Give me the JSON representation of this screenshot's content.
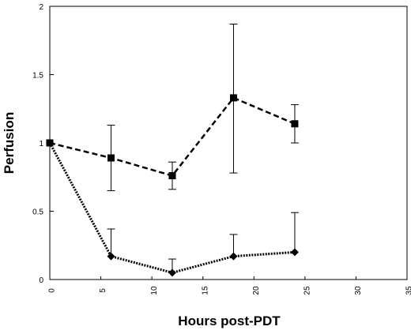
{
  "chart_data": {
    "type": "line",
    "title": "",
    "xlabel": "Hours post-PDT",
    "ylabel": "Perfusion",
    "xlim": [
      0,
      35
    ],
    "ylim": [
      0,
      2
    ],
    "xticks": [
      "0",
      "5",
      "10",
      "15",
      "20",
      "25",
      "30",
      "35"
    ],
    "yticks": [
      "0",
      "0.5",
      "1",
      "1.5",
      "2"
    ],
    "grid": false,
    "legend": "none",
    "series": [
      {
        "marker": "square",
        "line_style": "dashed",
        "color": "#000000",
        "points": [
          {
            "x": 0,
            "y": 1.0,
            "err": null
          },
          {
            "x": 6,
            "y": 0.89,
            "err": [
              0.65,
              1.13
            ]
          },
          {
            "x": 12,
            "y": 0.76,
            "err": [
              0.66,
              0.86
            ]
          },
          {
            "x": 18,
            "y": 1.33,
            "err": [
              0.78,
              1.87
            ]
          },
          {
            "x": 24,
            "y": 1.14,
            "err": [
              1.0,
              1.28
            ]
          }
        ]
      },
      {
        "marker": "diamond",
        "line_style": "dotted",
        "color": "#000000",
        "points": [
          {
            "x": 0,
            "y": 1.0,
            "err": null
          },
          {
            "x": 6,
            "y": 0.17,
            "err": [
              null,
              0.37
            ]
          },
          {
            "x": 12,
            "y": 0.05,
            "err": [
              null,
              0.15
            ]
          },
          {
            "x": 18,
            "y": 0.17,
            "err": [
              null,
              0.33
            ]
          },
          {
            "x": 24,
            "y": 0.2,
            "err": [
              null,
              0.49
            ]
          }
        ]
      }
    ]
  }
}
